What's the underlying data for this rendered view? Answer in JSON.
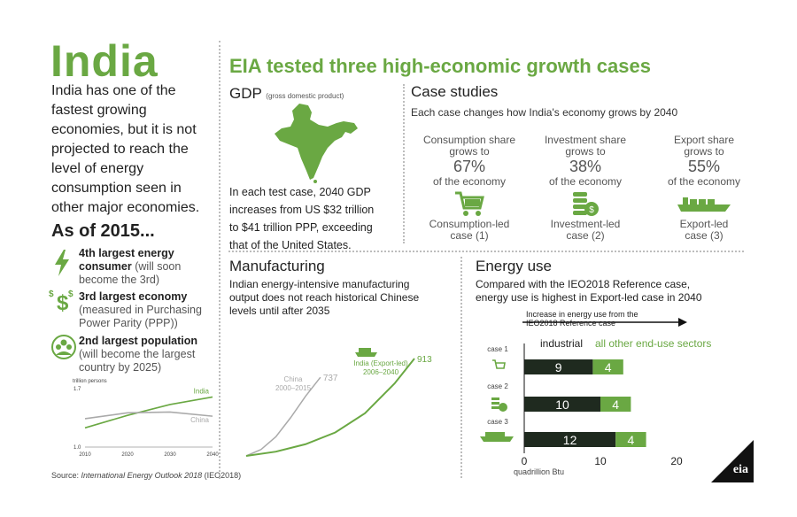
{
  "left": {
    "title": "India",
    "intro_lines": [
      "India has one of the",
      "fastest growing",
      "economies, but it is not",
      "projected to reach the",
      "level of energy",
      "consumption seen in",
      "other major economies."
    ],
    "as_of": "As of 2015...",
    "facts": [
      {
        "bold": "4th largest energy",
        "bold2": "consumer",
        "rest": "(will soon",
        "rest2": "become the 3rd)",
        "icon": "lightning-icon"
      },
      {
        "bold": "3rd largest economy",
        "rest": "(measured in Purchasing",
        "rest2": "Power Parity (PPP))",
        "icon": "dollar-icon"
      },
      {
        "bold": "2nd largest population",
        "rest": "(will become the largest",
        "rest2": "country by 2025)",
        "icon": "people-icon"
      }
    ],
    "source_prefix": "Source: ",
    "source_title": "International Energy Outlook 2018",
    "source_suffix": " (IEO2018)"
  },
  "header": {
    "title": "EIA tested three high-economic growth cases"
  },
  "gdp": {
    "title": "GDP",
    "subtitle": "(gross domestic product)",
    "text_lines": [
      "In each test case, 2040 GDP",
      "increases from US $32 trillion",
      "to $41 trillion PPP, exceeding",
      "that of the United States."
    ]
  },
  "cases": {
    "title": "Case studies",
    "subtitle": "Each case changes how India's economy grows by 2040",
    "items": [
      {
        "share1": "Consumption share",
        "share2": "grows to",
        "pct": "67%",
        "of": "of the economy",
        "name1": "Consumption-led",
        "name2": "case (1)",
        "icon": "shopping-cart-icon"
      },
      {
        "share1": "Investment share",
        "share2": "grows to",
        "pct": "38%",
        "of": "of the economy",
        "name1": "Investment-led",
        "name2": "case (2)",
        "icon": "coins-icon"
      },
      {
        "share1": "Export share",
        "share2": "grows to",
        "pct": "55%",
        "of": "of the economy",
        "name1": "Export-led",
        "name2": "case (3)",
        "icon": "ship-icon"
      }
    ]
  },
  "manufacturing": {
    "title": "Manufacturing",
    "text_lines": [
      "Indian energy-intensive manufacturing",
      "output does not reach historical Chinese",
      "levels until after 2035"
    ]
  },
  "energy": {
    "title": "Energy use",
    "text_lines": [
      "Compared with the IEO2018 Reference case,",
      "energy use is highest in Export-led case in 2040"
    ]
  },
  "colors": {
    "green": "#6aa843",
    "dark": "#1f2a1f",
    "gray": "#aaaaaa"
  },
  "chart_data": [
    {
      "type": "line",
      "ylabel": "trillion persons",
      "x_ticks": [
        "2010",
        "2020",
        "2030",
        "2040"
      ],
      "ylim": [
        1.0,
        1.7
      ],
      "y_ticks": [
        "1.7",
        "1.0"
      ],
      "series": [
        {
          "name": "India",
          "x": [
            2010,
            2020,
            2030,
            2040
          ],
          "values": [
            1.23,
            1.38,
            1.51,
            1.6
          ]
        },
        {
          "name": "China",
          "x": [
            2010,
            2020,
            2030,
            2040
          ],
          "values": [
            1.34,
            1.41,
            1.42,
            1.37
          ]
        }
      ]
    },
    {
      "type": "line",
      "series": [
        {
          "name": "China",
          "label1": "China",
          "label2": "2000–2015",
          "x": [
            2000,
            2003,
            2006,
            2009,
            2012,
            2015
          ],
          "values": [
            0,
            60,
            180,
            360,
            560,
            737
          ],
          "end_label": "737"
        },
        {
          "name": "India (Export-led)",
          "label1": "India (Export-led)",
          "label2": "2006–2040",
          "x": [
            2006,
            2012,
            2018,
            2024,
            2030,
            2036,
            2040
          ],
          "values": [
            0,
            40,
            110,
            220,
            400,
            680,
            913
          ],
          "end_label": "913"
        }
      ]
    },
    {
      "type": "bar",
      "header1": "Increase in energy use from the",
      "header2": "IEO2018 Reference case",
      "legend": [
        "industrial",
        "all other end-use sectors"
      ],
      "categories": [
        "case 1",
        "case 2",
        "case 3"
      ],
      "series": [
        {
          "name": "industrial",
          "values": [
            9,
            10,
            12
          ]
        },
        {
          "name": "all other end-use sectors",
          "values": [
            4,
            4,
            4
          ]
        }
      ],
      "x_ticks": [
        "0",
        "10",
        "20"
      ],
      "xlim": [
        0,
        20
      ],
      "xlabel": "quadrillion Btu"
    }
  ],
  "logo": {
    "text": "eia"
  }
}
